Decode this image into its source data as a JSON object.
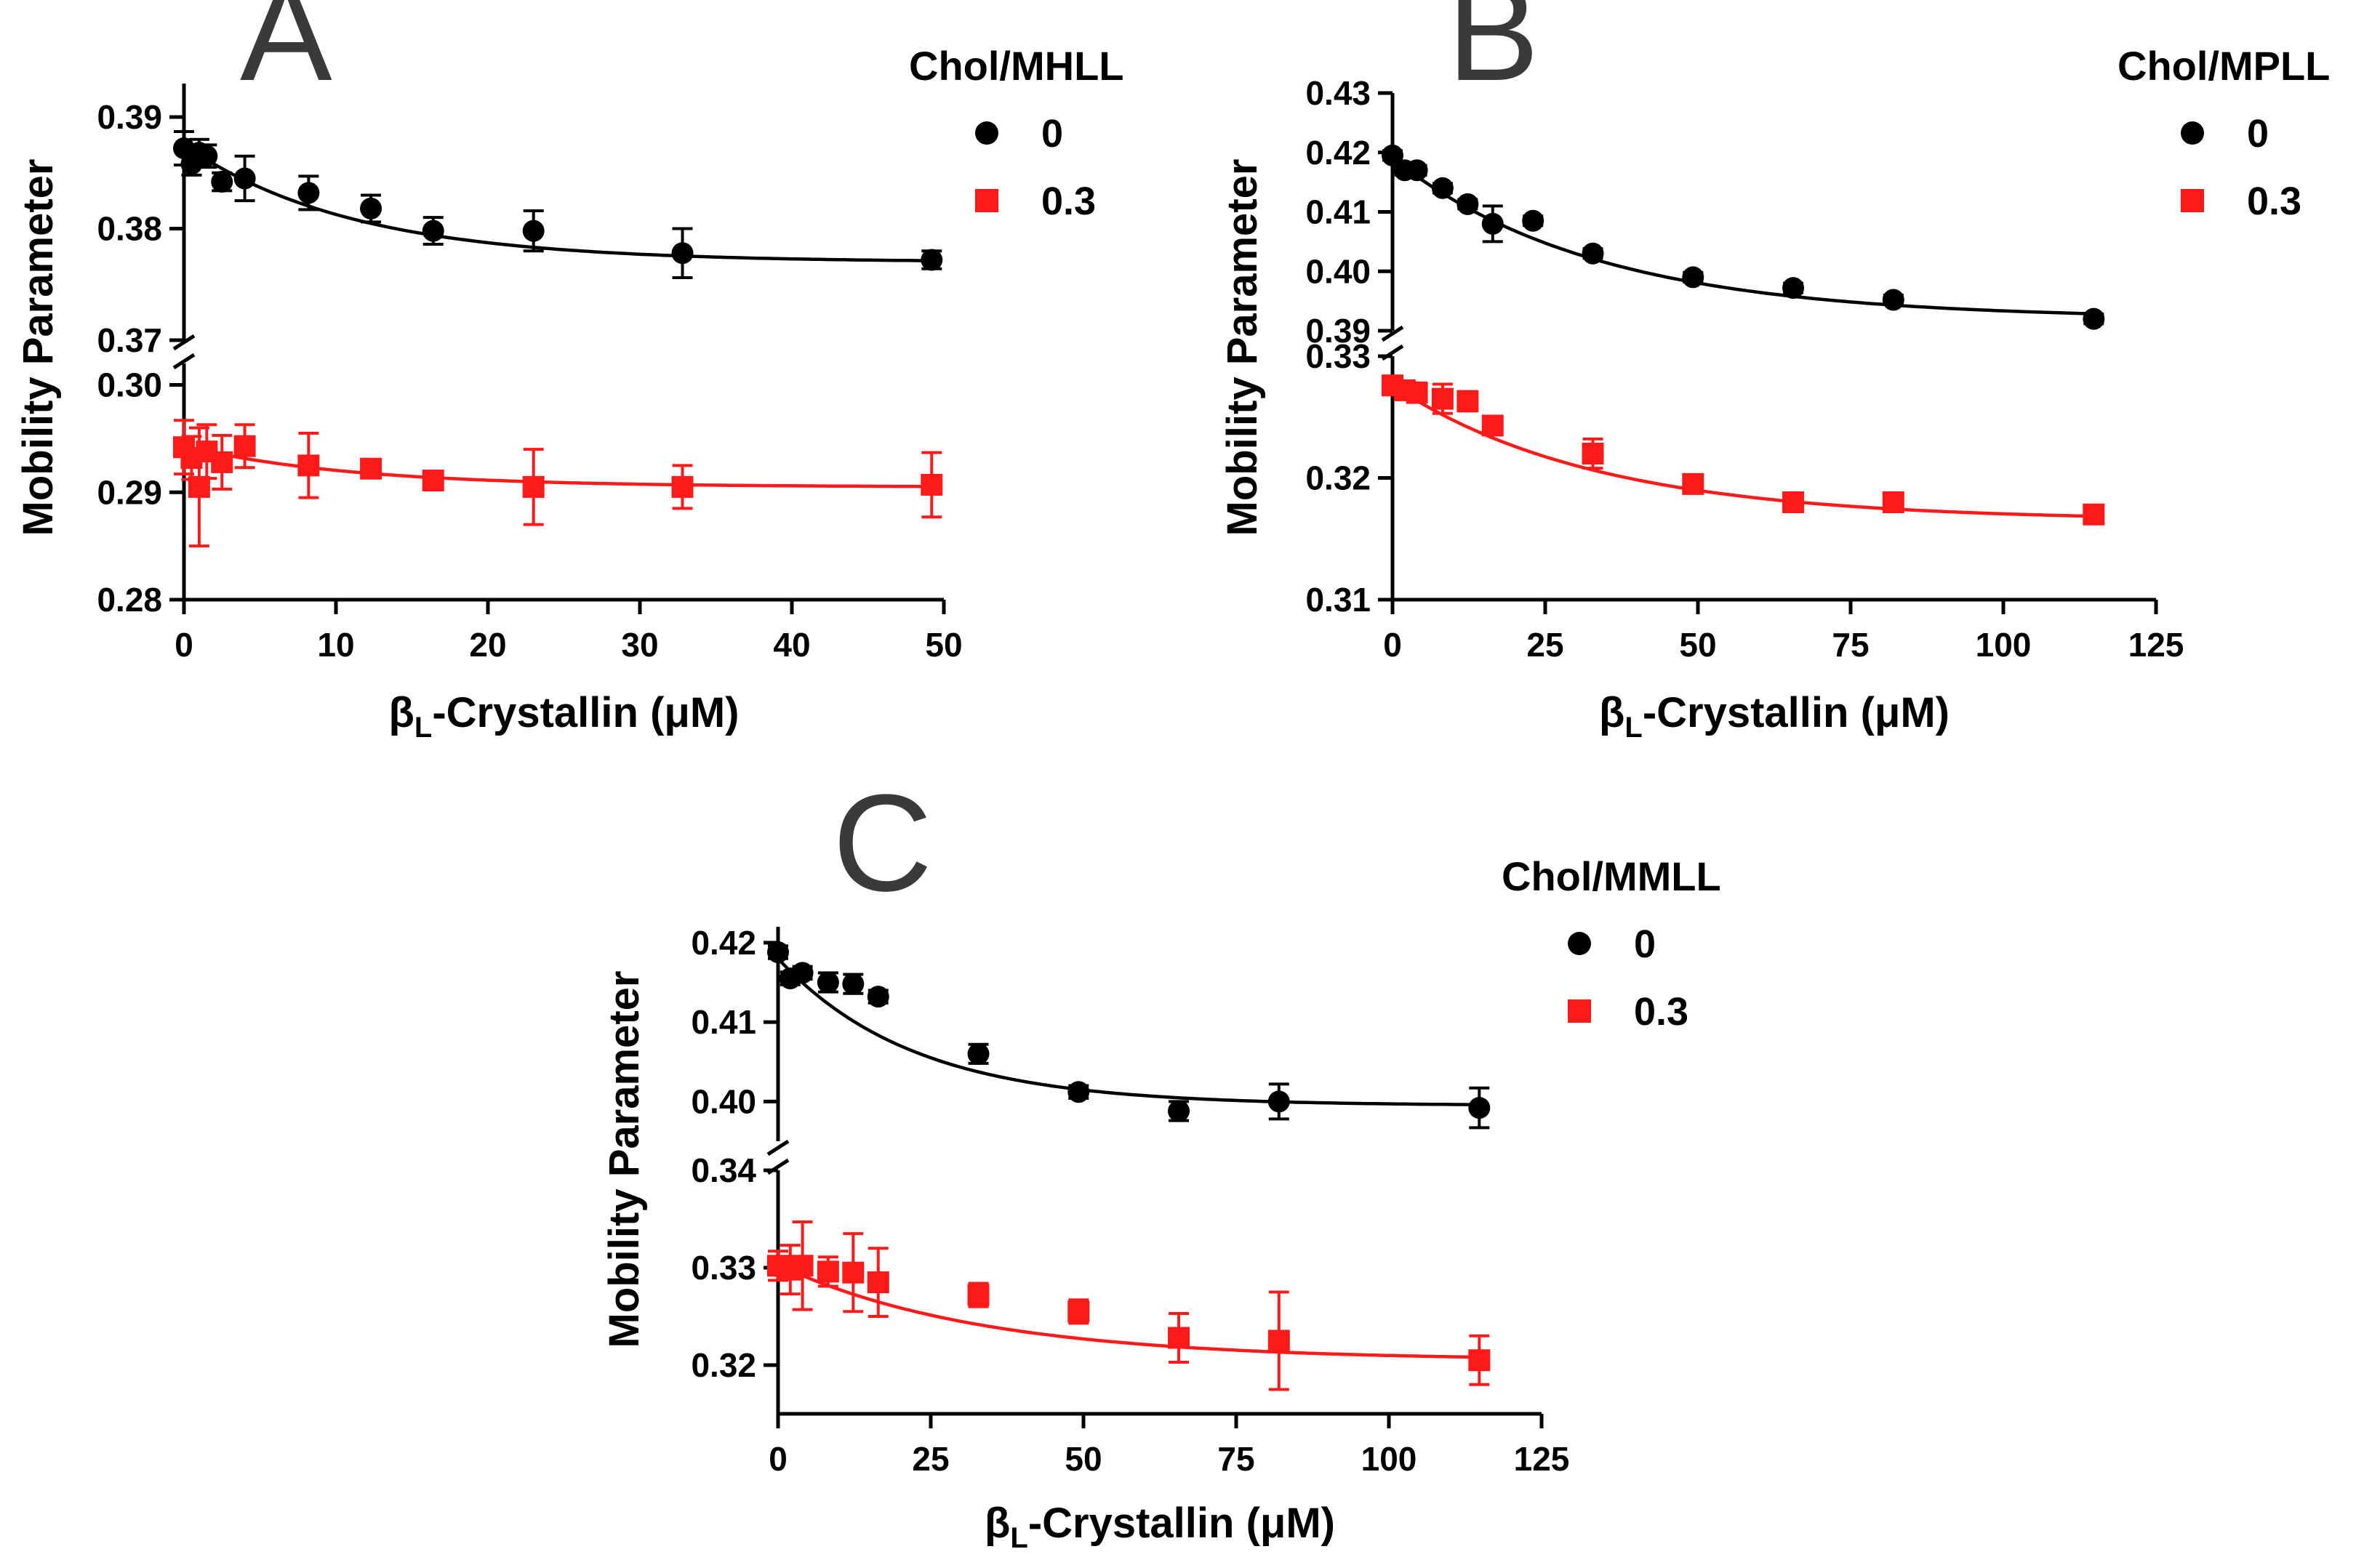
{
  "colors": {
    "series_0": "#000000",
    "series_0_3": "#ff1a1a",
    "axis": "#000000",
    "panel_letter": "#3a3a3a"
  },
  "chart_data": [
    {
      "panel": "A",
      "type": "scatter",
      "legend_title": "Chol/MHLL",
      "legend_position": "top-right",
      "xlabel": {
        "base": "β",
        "sub": "L",
        "rest": "-Crystallin (μM)"
      },
      "ylabel": "Mobility Parameter",
      "xlim": [
        0,
        50
      ],
      "xticks": [
        "0",
        "10",
        "20",
        "30",
        "40",
        "50"
      ],
      "y_segments": {
        "upper": {
          "ylim": [
            0.37,
            0.393
          ],
          "ticks": [
            "0.37",
            "0.38",
            "0.39"
          ]
        },
        "lower": {
          "ylim": [
            0.28,
            0.302
          ],
          "ticks": [
            "0.28",
            "0.29",
            "0.30"
          ]
        }
      },
      "series": [
        {
          "name": "0",
          "marker": "circle",
          "segment": "upper",
          "x": [
            0,
            0.5,
            1,
            1.5,
            2.5,
            4,
            8.2,
            12.3,
            16.4,
            23,
            32.8,
            49.2
          ],
          "y": [
            0.3872,
            0.3858,
            0.3868,
            0.3865,
            0.3842,
            0.3845,
            0.3832,
            0.3818,
            0.3798,
            0.3798,
            0.3778,
            0.3772
          ],
          "err": [
            0.0015,
            0.001,
            0.0012,
            0.001,
            0.0008,
            0.002,
            0.0015,
            0.0012,
            0.0012,
            0.0018,
            0.0022,
            0.0008
          ],
          "fit": {
            "top": 0.3875,
            "bottom": 0.377,
            "k": 0.09
          }
        },
        {
          "name": "0.3",
          "marker": "square",
          "segment": "lower",
          "x": [
            0,
            0.5,
            1,
            1.5,
            2.5,
            4,
            8.2,
            12.3,
            16.4,
            23,
            32.8,
            49.2
          ],
          "y": [
            0.2942,
            0.2932,
            0.2905,
            0.2938,
            0.2928,
            0.2943,
            0.2925,
            0.2922,
            0.2911,
            0.2905,
            0.2905,
            0.2907
          ],
          "err": [
            0.0025,
            0.002,
            0.0055,
            0.0025,
            0.0025,
            0.002,
            0.003,
            0.0008,
            0.0008,
            0.0035,
            0.002,
            0.003
          ],
          "fit": {
            "top": 0.2943,
            "bottom": 0.2905,
            "k": 0.09
          }
        }
      ]
    },
    {
      "panel": "B",
      "type": "scatter",
      "legend_title": "Chol/MPLL",
      "legend_position": "top-right",
      "xlabel": {
        "base": "β",
        "sub": "L",
        "rest": "-Crystallin (μM)"
      },
      "ylabel": "Mobility Parameter",
      "xlim": [
        0,
        125
      ],
      "xticks": [
        "0",
        "25",
        "50",
        "75",
        "100",
        "125"
      ],
      "y_segments": {
        "upper": {
          "ylim": [
            0.39,
            0.43
          ],
          "ticks": [
            "0.39",
            "0.40",
            "0.41",
            "0.42",
            "0.43"
          ]
        },
        "lower": {
          "ylim": [
            0.31,
            0.33
          ],
          "ticks": [
            "0.31",
            "0.32",
            "0.33"
          ]
        }
      },
      "series": [
        {
          "name": "0",
          "marker": "circle",
          "segment": "upper",
          "x": [
            0,
            2,
            4,
            8.2,
            12.3,
            16.4,
            23,
            32.8,
            49.2,
            65.6,
            82,
            114.8
          ],
          "y": [
            0.4195,
            0.417,
            0.417,
            0.414,
            0.4113,
            0.408,
            0.4085,
            0.403,
            0.399,
            0.3972,
            0.3952,
            0.392
          ],
          "err": [
            0.0008,
            0.0008,
            0.0008,
            0.0008,
            0.0008,
            0.003,
            0.0008,
            0.0008,
            0.0008,
            0.0008,
            0.0008,
            0.0008
          ],
          "fit": {
            "top": 0.419,
            "bottom": 0.392,
            "k": 0.03
          }
        },
        {
          "name": "0.3",
          "marker": "square",
          "segment": "lower",
          "x": [
            0,
            2,
            4,
            8.2,
            12.3,
            16.4,
            32.8,
            49.2,
            65.6,
            82,
            114.8
          ],
          "y": [
            0.3276,
            0.3272,
            0.327,
            0.3265,
            0.3263,
            0.3243,
            0.322,
            0.3195,
            0.318,
            0.318,
            0.317
          ],
          "err": [
            0.0005,
            0.0005,
            0.0008,
            0.0012,
            0.0008,
            0.0005,
            0.0012,
            0.0004,
            0.0004,
            0.0004,
            0.0004
          ],
          "fit": {
            "top": 0.3276,
            "bottom": 0.3165,
            "k": 0.03
          }
        }
      ]
    },
    {
      "panel": "C",
      "type": "scatter",
      "legend_title": "Chol/MMLL",
      "legend_position": "top-right",
      "xlabel": {
        "base": "β",
        "sub": "L",
        "rest": "-Crystallin (μM)"
      },
      "ylabel": "Mobility Parameter",
      "xlim": [
        0,
        125
      ],
      "xticks": [
        "0",
        "25",
        "50",
        "75",
        "100",
        "125"
      ],
      "y_segments": {
        "upper": {
          "ylim": [
            0.395,
            0.422
          ],
          "ticks": [
            "0.40",
            "0.41",
            "0.42"
          ]
        },
        "lower": {
          "ylim": [
            0.315,
            0.34
          ],
          "ticks": [
            "0.32",
            "0.33",
            "0.34"
          ]
        }
      },
      "series": [
        {
          "name": "0",
          "marker": "circle",
          "segment": "upper",
          "x": [
            0,
            2,
            4,
            8.2,
            12.3,
            16.4,
            32.8,
            49.2,
            65.6,
            82,
            114.8
          ],
          "y": [
            0.4188,
            0.4155,
            0.4162,
            0.415,
            0.4148,
            0.4132,
            0.406,
            0.4012,
            0.3988,
            0.4,
            0.3992
          ],
          "err": [
            0.0008,
            0.0008,
            0.0008,
            0.0012,
            0.0012,
            0.0008,
            0.0012,
            0.0008,
            0.0012,
            0.0022,
            0.0025
          ],
          "fit": {
            "top": 0.418,
            "bottom": 0.3995,
            "k": 0.045
          }
        },
        {
          "name": "0.3",
          "marker": "square",
          "segment": "lower",
          "x": [
            0,
            2,
            4,
            8.2,
            12.3,
            16.4,
            32.8,
            49.2,
            65.6,
            82,
            114.8
          ],
          "y": [
            0.3302,
            0.3298,
            0.3302,
            0.3296,
            0.3295,
            0.3285,
            0.3272,
            0.3255,
            0.3228,
            0.3225,
            0.3205
          ],
          "err": [
            0.0015,
            0.0025,
            0.0045,
            0.0015,
            0.004,
            0.0035,
            0.0012,
            0.0012,
            0.0025,
            0.005,
            0.0025
          ],
          "fit": {
            "top": 0.3303,
            "bottom": 0.3205,
            "k": 0.03
          }
        }
      ]
    }
  ]
}
